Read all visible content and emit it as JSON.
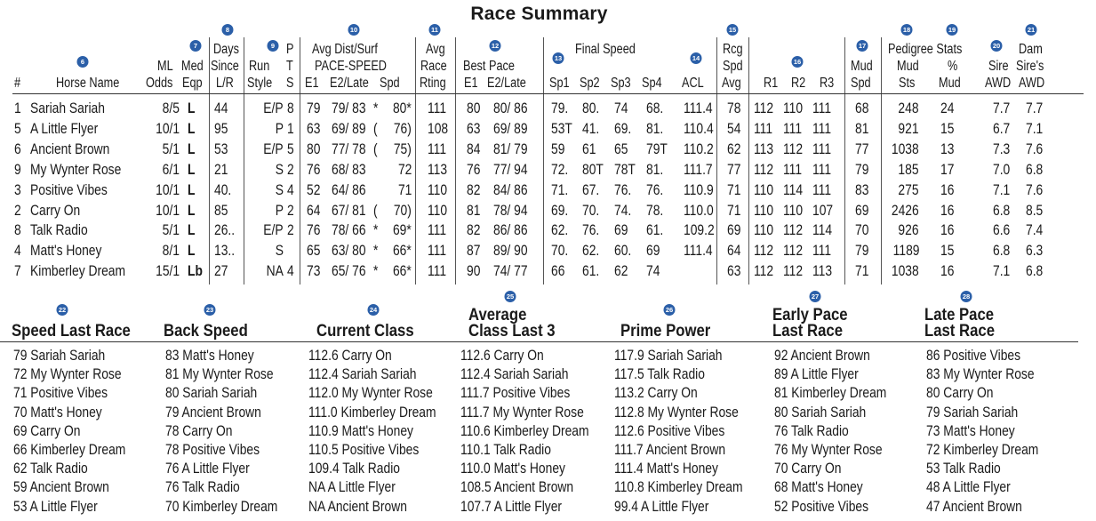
{
  "title": "Race Summary",
  "badges": [
    "6",
    "7",
    "8",
    "9",
    "10",
    "11",
    "12",
    "13",
    "14",
    "15",
    "16",
    "17",
    "18",
    "19",
    "20",
    "21",
    "22",
    "23",
    "24",
    "25",
    "26",
    "27",
    "28"
  ],
  "headers": {
    "num": "#",
    "horse": "Horse Name",
    "ml1": "ML",
    "ml2": "Odds",
    "med1": "Med",
    "med2": "Eqp",
    "days1": "Days",
    "days2": "Since",
    "days3": "L/R",
    "run1": "Run",
    "run2": "Style",
    "pts1": "P",
    "pts2": "T",
    "pts3": "S",
    "avgdist1": "Avg Dist/Surf",
    "avgdist2": "PACE-SPEED",
    "e1": "E1",
    "e2late": "E2/Late",
    "spd": "Spd",
    "avgrace1": "Avg",
    "avgrace2": "Race",
    "avgrace3": "Rting",
    "bestpace1": "Best Pace",
    "bp_e1": "E1",
    "bp_e2late": "E2/Late",
    "finalspeed": "Final Speed",
    "sp1": "Sp1",
    "sp2": "Sp2",
    "sp3": "Sp3",
    "sp4": "Sp4",
    "acl": "ACL",
    "rcg1": "Rcg",
    "rcg2": "Spd",
    "rcg3": "Avg",
    "r1": "R1",
    "r2": "R2",
    "r3": "R3",
    "mud1": "Mud",
    "mud2": "Spd",
    "pedigree": "Pedigree Stats",
    "mudsts1": "Mud",
    "mudsts2": "Sts",
    "pctmud1": "%",
    "pctmud2": "Mud",
    "sire1": "Sire",
    "sire2": "AWD",
    "dam1": "Dam",
    "dam2": "Sire's",
    "dam3": "AWD"
  },
  "rows": [
    {
      "num": "1",
      "name": "Sariah Sariah",
      "odds": "8/5",
      "eqp": "L",
      "days": "44",
      "style": "E/P",
      "pts": "8",
      "e1": "79",
      "e2": "79/ 83",
      "e2m": "*",
      "spd": "80*",
      "avgrace": "111",
      "bpe1": "80",
      "bpe2": "80/ 86",
      "sp1": "79.",
      "sp2": "80.",
      "sp3": "74",
      "sp4": "68.",
      "acl": "111.4",
      "rcg": "78",
      "r1": "112",
      "r2": "110",
      "r3": "111",
      "mud": "68",
      "mudsts": "248",
      "pct": "24",
      "sire": "7.7",
      "dam": "7.7"
    },
    {
      "num": "5",
      "name": "A Little Flyer",
      "odds": "10/1",
      "eqp": "L",
      "days": "95",
      "style": "P",
      "pts": "1",
      "e1": "63",
      "e2": "69/ 89",
      "e2m": "(",
      "spd": "76)",
      "avgrace": "108",
      "bpe1": "63",
      "bpe2": "69/ 89",
      "sp1": "53T",
      "sp2": "41.",
      "sp3": "69.",
      "sp4": "81.",
      "acl": "110.4",
      "rcg": "54",
      "r1": "111",
      "r2": "111",
      "r3": "111",
      "mud": "81",
      "mudsts": "921",
      "pct": "15",
      "sire": "6.7",
      "dam": "7.1"
    },
    {
      "num": "6",
      "name": "Ancient Brown",
      "odds": "5/1",
      "eqp": "L",
      "days": "53",
      "style": "E/P",
      "pts": "5",
      "e1": "80",
      "e2": "77/ 78",
      "e2m": "(",
      "spd": "75)",
      "avgrace": "111",
      "bpe1": "84",
      "bpe2": "81/ 79",
      "sp1": "59",
      "sp2": "61",
      "sp3": "65",
      "sp4": "79T",
      "acl": "110.2",
      "rcg": "62",
      "r1": "113",
      "r2": "112",
      "r3": "111",
      "mud": "77",
      "mudsts": "1038",
      "pct": "13",
      "sire": "7.3",
      "dam": "7.6"
    },
    {
      "num": "9",
      "name": "My Wynter Rose",
      "odds": "6/1",
      "eqp": "L",
      "days": "21",
      "style": "S",
      "pts": "2",
      "e1": "76",
      "e2": "68/ 83",
      "e2m": "",
      "spd": "72",
      "avgrace": "113",
      "bpe1": "76",
      "bpe2": "77/ 94",
      "sp1": "72.",
      "sp2": "80T",
      "sp3": "78T",
      "sp4": "81.",
      "acl": "111.7",
      "rcg": "77",
      "r1": "112",
      "r2": "111",
      "r3": "111",
      "mud": "79",
      "mudsts": "185",
      "pct": "17",
      "sire": "7.0",
      "dam": "6.8"
    },
    {
      "num": "3",
      "name": "Positive Vibes",
      "odds": "10/1",
      "eqp": "L",
      "days": "40.",
      "style": "S",
      "pts": "4",
      "e1": "52",
      "e2": "64/ 86",
      "e2m": "",
      "spd": "71",
      "avgrace": "110",
      "bpe1": "82",
      "bpe2": "84/ 86",
      "sp1": "71.",
      "sp2": "67.",
      "sp3": "76.",
      "sp4": "76.",
      "acl": "110.9",
      "rcg": "71",
      "r1": "110",
      "r2": "114",
      "r3": "111",
      "mud": "83",
      "mudsts": "275",
      "pct": "16",
      "sire": "7.1",
      "dam": "7.6"
    },
    {
      "num": "2",
      "name": "Carry On",
      "odds": "10/1",
      "eqp": "L",
      "days": "85",
      "style": "P",
      "pts": "2",
      "e1": "64",
      "e2": "67/ 81",
      "e2m": "(",
      "spd": "70)",
      "avgrace": "110",
      "bpe1": "81",
      "bpe2": "78/ 94",
      "sp1": "69.",
      "sp2": "70.",
      "sp3": "74.",
      "sp4": "78.",
      "acl": "110.0",
      "rcg": "71",
      "r1": "110",
      "r2": "110",
      "r3": "107",
      "mud": "69",
      "mudsts": "2426",
      "pct": "16",
      "sire": "6.8",
      "dam": "8.5"
    },
    {
      "num": "8",
      "name": "Talk Radio",
      "odds": "5/1",
      "eqp": "L",
      "days": "26..",
      "style": "E/P",
      "pts": "2",
      "e1": "76",
      "e2": "78/ 66",
      "e2m": "*",
      "spd": "69*",
      "avgrace": "111",
      "bpe1": "82",
      "bpe2": "86/ 86",
      "sp1": "62.",
      "sp2": "76.",
      "sp3": "69",
      "sp4": "61.",
      "acl": "109.2",
      "rcg": "69",
      "r1": "110",
      "r2": "112",
      "r3": "114",
      "mud": "70",
      "mudsts": "926",
      "pct": "16",
      "sire": "6.6",
      "dam": "7.4"
    },
    {
      "num": "4",
      "name": "Matt's Honey",
      "odds": "8/1",
      "eqp": "L",
      "days": "13..",
      "style": "S",
      "pts": "",
      "e1": "65",
      "e2": "63/ 80",
      "e2m": "*",
      "spd": "66*",
      "avgrace": "111",
      "bpe1": "87",
      "bpe2": "89/ 90",
      "sp1": "70.",
      "sp2": "62.",
      "sp3": "60.",
      "sp4": "69",
      "acl": "111.4",
      "rcg": "64",
      "r1": "112",
      "r2": "112",
      "r3": "111",
      "mud": "79",
      "mudsts": "1189",
      "pct": "15",
      "sire": "6.8",
      "dam": "6.3"
    },
    {
      "num": "7",
      "name": "Kimberley Dream",
      "odds": "15/1",
      "eqp": "Lb",
      "days": "27",
      "style": "NA",
      "pts": "4",
      "e1": "73",
      "e2": "65/ 76",
      "e2m": "*",
      "spd": "66*",
      "avgrace": "111",
      "bpe1": "90",
      "bpe2": "74/ 77",
      "sp1": "66",
      "sp2": "61.",
      "sp3": "62",
      "sp4": "74",
      "acl": "",
      "rcg": "63",
      "r1": "112",
      "r2": "112",
      "r3": "113",
      "mud": "71",
      "mudsts": "1038",
      "pct": "16",
      "sire": "7.1",
      "dam": "6.8"
    }
  ],
  "sections": [
    {
      "title1": "",
      "title2": "Speed Last Race",
      "items": [
        "79 Sariah Sariah",
        "72 My Wynter Rose",
        "71 Positive Vibes",
        "70 Matt's Honey",
        "69 Carry On",
        "66 Kimberley Dream",
        "62 Talk Radio",
        "59 Ancient Brown",
        "53 A Little Flyer"
      ]
    },
    {
      "title1": "",
      "title2": "Back Speed",
      "items": [
        "83 Matt's Honey",
        "81 My Wynter Rose",
        "80 Sariah Sariah",
        "79 Ancient Brown",
        "78 Carry On",
        "78 Positive Vibes",
        "76 A Little Flyer",
        "76 Talk Radio",
        "70 Kimberley Dream"
      ]
    },
    {
      "title1": "",
      "title2": "Current Class",
      "items": [
        "112.6 Carry On",
        "112.4 Sariah Sariah",
        "112.0 My Wynter Rose",
        "111.0 Kimberley Dream",
        "110.9 Matt's Honey",
        "110.5 Positive Vibes",
        "109.4 Talk Radio",
        "NA A Little Flyer",
        "NA Ancient Brown"
      ]
    },
    {
      "title1": "Average",
      "title2": "Class Last 3",
      "items": [
        "112.6 Carry On",
        "112.4 Sariah Sariah",
        "111.7 Positive Vibes",
        "111.7 My Wynter Rose",
        "110.6 Kimberley Dream",
        "110.1 Talk Radio",
        "110.0 Matt's Honey",
        "108.5 Ancient Brown",
        "107.7 A Little Flyer"
      ]
    },
    {
      "title1": "",
      "title2": "Prime Power",
      "items": [
        "117.9 Sariah Sariah",
        "117.5 Talk Radio",
        "113.2 Carry On",
        "112.8 My Wynter Rose",
        "112.6 Positive Vibes",
        "111.7 Ancient Brown",
        "111.4 Matt's Honey",
        "110.8 Kimberley Dream",
        "99.4 A Little Flyer"
      ]
    },
    {
      "title1": "Early Pace",
      "title2": "Last Race",
      "items": [
        "92 Ancient Brown",
        "89 A Little Flyer",
        "81 Kimberley Dream",
        "80 Sariah Sariah",
        "76 Talk Radio",
        "76 My Wynter Rose",
        "70 Carry On",
        "68 Matt's Honey",
        "52 Positive Vibes"
      ]
    },
    {
      "title1": "Late Pace",
      "title2": "Last Race",
      "items": [
        "86 Positive Vibes",
        "83 My Wynter Rose",
        "80 Carry On",
        "79 Sariah Sariah",
        "73 Matt's Honey",
        "72 Kimberley Dream",
        "53 Talk Radio",
        "48 A Little Flyer",
        "47 Ancient Brown"
      ]
    }
  ]
}
